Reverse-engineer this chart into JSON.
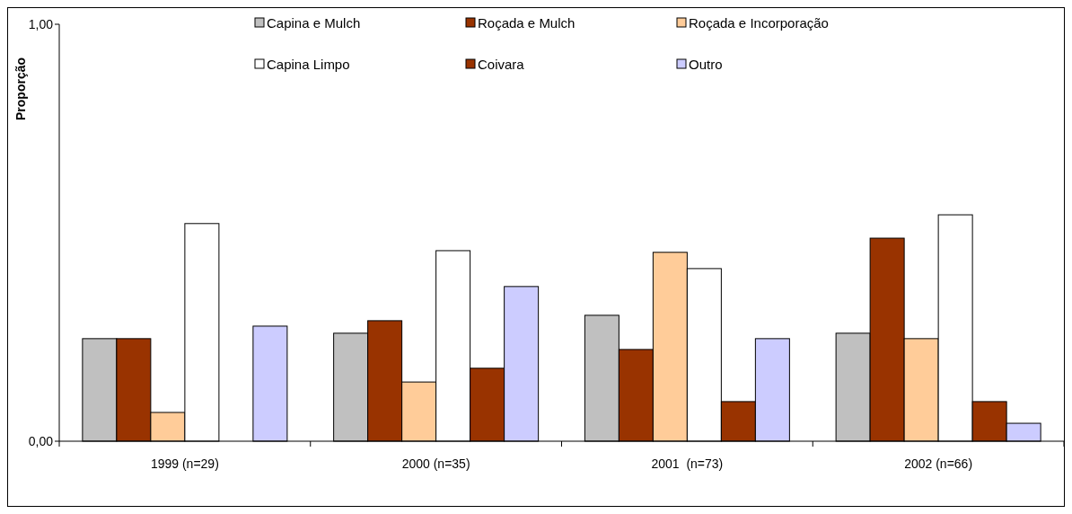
{
  "chart_data": {
    "type": "bar",
    "ylabel": "Proporção",
    "categories": [
      "1999 (n=29)",
      "2000 (n=35)",
      "2001  (n=73)",
      "2002 (n=66)"
    ],
    "ylim": [
      0,
      1
    ],
    "yticks": [
      {
        "value": 0,
        "label": "0,00"
      },
      {
        "value": 1,
        "label": "1,00"
      }
    ],
    "grid": false,
    "legend": "top",
    "series": [
      {
        "name": "Capina e Mulch",
        "color": "#c0c0c0",
        "values": [
          0.246,
          0.259,
          0.302,
          0.259
        ]
      },
      {
        "name": "Roçada e Mulch",
        "color": "#993300",
        "values": [
          0.246,
          0.289,
          0.22,
          0.487
        ]
      },
      {
        "name": "Roçada e Incorporação",
        "color": "#ffcc99",
        "values": [
          0.069,
          0.142,
          0.453,
          0.246
        ]
      },
      {
        "name": "Capina Limpo",
        "color": "#ffffff",
        "values": [
          0.522,
          0.457,
          0.414,
          0.543
        ]
      },
      {
        "name": "Coivara",
        "color": "#993300",
        "values": [
          0,
          0.175,
          0.095,
          0.095
        ]
      },
      {
        "name": "Outro",
        "color": "#ccccff",
        "values": [
          0.276,
          0.371,
          0.246,
          0.043
        ]
      }
    ]
  }
}
